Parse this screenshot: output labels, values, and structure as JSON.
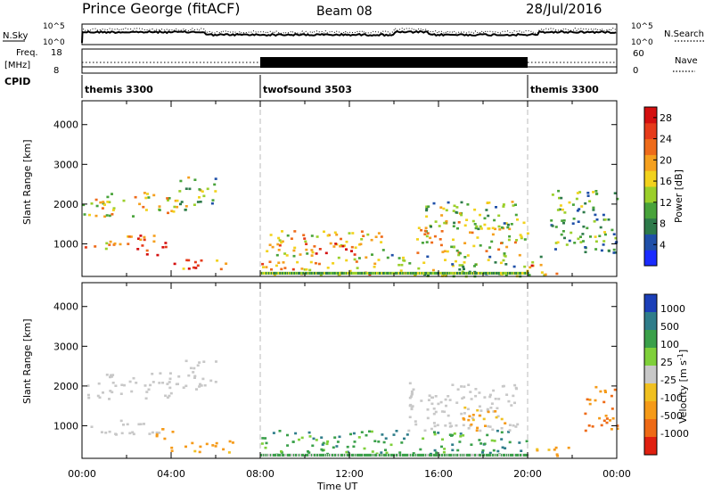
{
  "header": {
    "station": "Prince George (fitACF)",
    "beam": "Beam 08",
    "date": "28/Jul/2016"
  },
  "top_panels": {
    "nsky_label": "N.Sky",
    "nsky_ticks": [
      "10^5",
      "10^0"
    ],
    "nsearch_label": "N.Search",
    "nsearch_ticks": [
      "10^5",
      "10^0"
    ],
    "freq_label_1": "Freq.",
    "freq_label_2": "[MHz]",
    "freq_ticks": [
      "18",
      "8"
    ],
    "nave_label": "Nave",
    "nave_ticks": [
      "60",
      "0"
    ],
    "cpid_label": "CPID",
    "cpid_segments": [
      {
        "name": "themis 3300",
        "start": 0,
        "end": 8
      },
      {
        "name": "twofsound 3503",
        "start": 8,
        "end": 20
      },
      {
        "name": "themis 3300",
        "start": 20,
        "end": 24
      }
    ]
  },
  "chart_data": [
    {
      "type": "heatmap",
      "title": "",
      "xlabel": "Time UT",
      "ylabel": "Slant Range [km]",
      "xlim": [
        0,
        24
      ],
      "ylim": [
        180,
        4600
      ],
      "x_ticks": [
        "00:00",
        "04:00",
        "08:00",
        "12:00",
        "16:00",
        "20:00",
        "00:00"
      ],
      "y_ticks": [
        1000,
        2000,
        3000,
        4000
      ],
      "colorbar": {
        "label": "Power [dB]",
        "ticks": [
          4,
          8,
          12,
          16,
          20,
          24,
          28
        ],
        "range": [
          0,
          30
        ],
        "colors": [
          "#1a2bff",
          "#1f4fa8",
          "#2d7a4a",
          "#48a33a",
          "#9bcf2a",
          "#f2d21c",
          "#f5a01e",
          "#ee6b1a",
          "#e63b1a",
          "#d40f0f"
        ]
      },
      "echo_regions": [
        {
          "t0": 0.0,
          "t1": 4.3,
          "r0": 1700,
          "r1": 2350,
          "level": 16
        },
        {
          "t0": 4.3,
          "t1": 6.0,
          "r0": 1850,
          "r1": 2700,
          "level": 12
        },
        {
          "t0": 0.0,
          "t1": 2.2,
          "r0": 900,
          "r1": 1100,
          "level": 20
        },
        {
          "t0": 2.0,
          "t1": 4.0,
          "r0": 700,
          "r1": 1250,
          "level": 24
        },
        {
          "t0": 3.9,
          "t1": 6.5,
          "r0": 380,
          "r1": 640,
          "level": 22
        },
        {
          "t0": 8.0,
          "t1": 13.5,
          "r0": 250,
          "r1": 1350,
          "level": 18
        },
        {
          "t0": 10.0,
          "t1": 12.5,
          "r0": 750,
          "r1": 1050,
          "level": 26
        },
        {
          "t0": 13.5,
          "t1": 21.0,
          "r0": 200,
          "r1": 750,
          "level": 12
        },
        {
          "t0": 15.0,
          "t1": 20.0,
          "r0": 750,
          "r1": 1600,
          "level": 16
        },
        {
          "t0": 15.0,
          "t1": 19.5,
          "r0": 1400,
          "r1": 2100,
          "level": 12
        },
        {
          "t0": 20.0,
          "t1": 21.3,
          "r0": 250,
          "r1": 500,
          "level": 24
        },
        {
          "t0": 21.0,
          "t1": 24.0,
          "r0": 800,
          "r1": 2400,
          "level": 10
        }
      ],
      "data_gaps": []
    },
    {
      "type": "heatmap",
      "title": "",
      "xlabel": "Time UT",
      "ylabel": "Slant Range [km]",
      "xlim": [
        0,
        24
      ],
      "ylim": [
        180,
        4600
      ],
      "x_ticks": [
        "00:00",
        "04:00",
        "08:00",
        "12:00",
        "16:00",
        "20:00",
        "00:00"
      ],
      "y_ticks": [
        1000,
        2000,
        3000,
        4000
      ],
      "colorbar": {
        "label": "Velocity [m s^-1]",
        "ticks": [
          "1000",
          "500",
          "100",
          "25",
          "-25",
          "-100",
          "-500",
          "-1000"
        ],
        "colors": [
          "#1b3fb8",
          "#2f7d8a",
          "#3aa04a",
          "#7fd03a",
          "#c8c8c8",
          "#f0c020",
          "#f59a18",
          "#ee6a16",
          "#e02010"
        ]
      },
      "echo_regions": [
        {
          "t0": 0.0,
          "t1": 4.3,
          "r0": 1700,
          "r1": 2350,
          "level": 0
        },
        {
          "t0": 4.3,
          "t1": 6.0,
          "r0": 1850,
          "r1": 2700,
          "level": 0
        },
        {
          "t0": 0.0,
          "t1": 3.5,
          "r0": 800,
          "r1": 1200,
          "level": 0
        },
        {
          "t0": 3.3,
          "t1": 4.2,
          "r0": 700,
          "r1": 1100,
          "level": -200
        },
        {
          "t0": 3.9,
          "t1": 7.0,
          "r0": 350,
          "r1": 650,
          "level": -150
        },
        {
          "t0": 8.0,
          "t1": 20.0,
          "r0": 300,
          "r1": 900,
          "level": 80
        },
        {
          "t0": 14.5,
          "t1": 19.5,
          "r0": 900,
          "r1": 2100,
          "level": 0
        },
        {
          "t0": 17.0,
          "t1": 19.0,
          "r0": 900,
          "r1": 1500,
          "level": -150
        },
        {
          "t0": 20.0,
          "t1": 22.0,
          "r0": 250,
          "r1": 500,
          "level": -100
        },
        {
          "t0": 22.5,
          "t1": 24.0,
          "r0": 900,
          "r1": 2000,
          "level": -300
        }
      ]
    }
  ]
}
